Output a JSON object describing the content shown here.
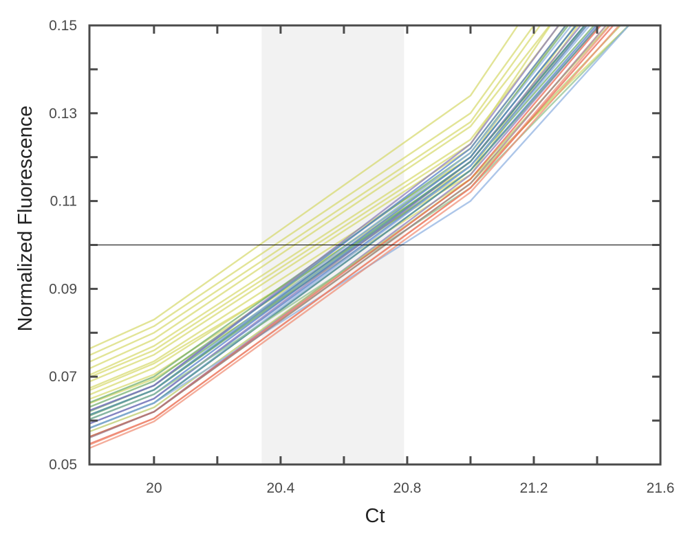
{
  "chart_data": {
    "type": "line",
    "xlabel": "Ct",
    "ylabel": "Normalized Fluorescence",
    "xlim": [
      19.796,
      21.6
    ],
    "ylim": [
      0.05,
      0.15
    ],
    "x_ticks": [
      20,
      20.4,
      20.8,
      21.2,
      21.6
    ],
    "x_tick_labels": [
      "20",
      "20.4",
      "20.8",
      "21.2",
      "21.6"
    ],
    "y_ticks": [
      0.15,
      0.13,
      0.11,
      0.09,
      0.07,
      0.05
    ],
    "y_tick_labels": [
      "0.15",
      "0.13",
      "0.11",
      "0.09",
      "0.07",
      "0.05"
    ],
    "grid": false,
    "threshold": 0.1,
    "shaded_region": [
      20.34,
      20.79
    ],
    "x": [
      19,
      20,
      21,
      22
    ],
    "series": [
      {
        "color": "#d6d86a",
        "values": [
          0.0505,
          0.083,
          0.134,
          0.241
        ]
      },
      {
        "color": "#d6d86a",
        "values": [
          0.049,
          0.0815,
          0.13,
          0.23
        ]
      },
      {
        "color": "#d6d86a",
        "values": [
          0.0475,
          0.08,
          0.128,
          0.228
        ]
      },
      {
        "color": "#d6d86a",
        "values": [
          0.046,
          0.0785,
          0.127,
          0.219
        ]
      },
      {
        "color": "#d6d86a",
        "values": [
          0.0445,
          0.077,
          0.124,
          0.217
        ]
      },
      {
        "color": "#d6d86a",
        "values": [
          0.045,
          0.075,
          0.122,
          0.215
        ]
      },
      {
        "color": "#d6d86a",
        "values": [
          0.0435,
          0.0735,
          0.12,
          0.22
        ]
      },
      {
        "color": "#d6d86a",
        "values": [
          0.042,
          0.072,
          0.118,
          0.2055
        ]
      },
      {
        "color": "#d6d86a",
        "values": [
          0.043,
          0.0705,
          0.117,
          0.217
        ]
      },
      {
        "color": "#d6d86a",
        "values": [
          0.042,
          0.0695,
          0.115,
          0.185
        ]
      },
      {
        "color": "#d6d86a",
        "values": [
          0.043,
          0.073,
          0.116,
          0.216
        ]
      },
      {
        "color": "#d6d86a",
        "values": [
          0.046,
          0.076,
          0.123,
          0.23
        ]
      },
      {
        "color": "#6aaa64",
        "values": [
          0.041,
          0.07,
          0.121,
          0.215
        ]
      },
      {
        "color": "#6aaa64",
        "values": [
          0.04,
          0.069,
          0.12,
          0.21
        ]
      },
      {
        "color": "#6aaa64",
        "values": [
          0.039,
          0.068,
          0.119,
          0.205
        ]
      },
      {
        "color": "#6aaa64",
        "values": [
          0.038,
          0.067,
          0.118,
          0.2
        ]
      },
      {
        "color": "#4a78c8",
        "values": [
          0.04,
          0.068,
          0.122,
          0.215
        ]
      },
      {
        "color": "#4a78c8",
        "values": [
          0.039,
          0.067,
          0.12,
          0.21
        ]
      },
      {
        "color": "#4a78c8",
        "values": [
          0.038,
          0.066,
          0.119,
          0.205
        ]
      },
      {
        "color": "#4a78c8",
        "values": [
          0.037,
          0.065,
          0.118,
          0.205
        ]
      },
      {
        "color": "#4a78c8",
        "values": [
          0.036,
          0.064,
          0.117,
          0.2
        ]
      },
      {
        "color": "#8878b8",
        "values": [
          0.04,
          0.068,
          0.123,
          0.22
        ]
      },
      {
        "color": "#8878b8",
        "values": [
          0.037,
          0.065,
          0.119,
          0.208
        ]
      },
      {
        "color": "#8878b8",
        "values": [
          0.034,
          0.062,
          0.116,
          0.2
        ]
      },
      {
        "color": "#8aaee0",
        "values": [
          0.039,
          0.067,
          0.121,
          0.212
        ]
      },
      {
        "color": "#8aaee0",
        "values": [
          0.036,
          0.064,
          0.118,
          0.203
        ]
      },
      {
        "color": "#5a9a8a",
        "values": [
          0.039,
          0.067,
          0.119,
          0.205
        ]
      },
      {
        "color": "#5a9a8a",
        "values": [
          0.036,
          0.064,
          0.117,
          0.198
        ]
      },
      {
        "color": "#b8c860",
        "values": [
          0.036,
          0.063,
          0.115,
          0.195
        ]
      },
      {
        "color": "#b8c860",
        "values": [
          0.034,
          0.062,
          0.114,
          0.19
        ]
      },
      {
        "color": "#8cc08a",
        "values": [
          0.038,
          0.066,
          0.113,
          0.187
        ]
      },
      {
        "color": "#8aaee0",
        "values": [
          0.036,
          0.064,
          0.11,
          0.19
        ]
      },
      {
        "color": "#e8604a",
        "values": [
          0.034,
          0.062,
          0.115,
          0.2
        ]
      },
      {
        "color": "#e8604a",
        "values": [
          0.032,
          0.0605,
          0.113,
          0.195
        ]
      },
      {
        "color": "#f08a70",
        "values": [
          0.031,
          0.0605,
          0.113,
          0.197
        ]
      },
      {
        "color": "#f08a70",
        "values": [
          0.03,
          0.0598,
          0.112,
          0.193
        ]
      },
      {
        "color": "#a07888",
        "values": [
          0.033,
          0.062,
          0.114,
          0.198
        ]
      }
    ]
  }
}
